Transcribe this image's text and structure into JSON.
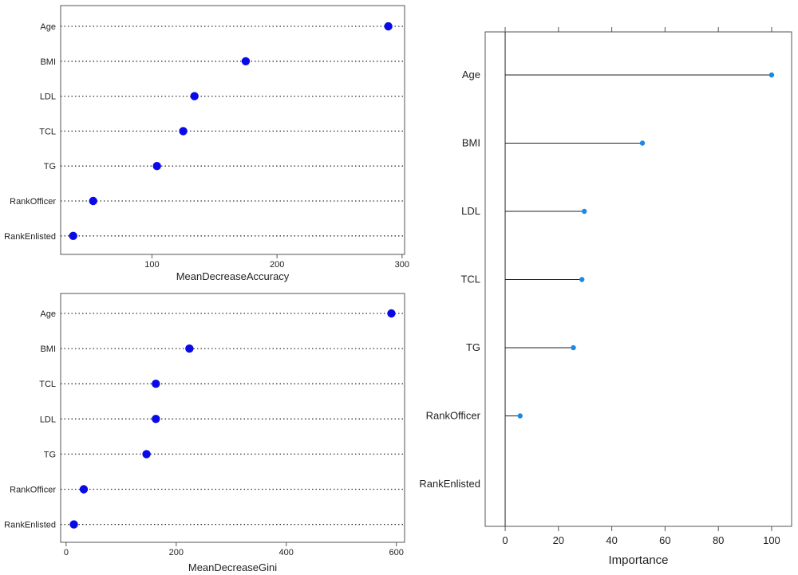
{
  "chart_data": [
    {
      "type": "scatter",
      "style": "dotchart",
      "xlabel": "MeanDecreaseAccuracy",
      "categories": [
        "Age",
        "BMI",
        "LDL",
        "TCL",
        "TG",
        "RankOfficer",
        "RankEnlisted"
      ],
      "values": [
        289,
        175,
        134,
        125,
        104,
        53,
        37
      ],
      "xlim": [
        27,
        302
      ],
      "xticks": [
        100,
        200,
        300
      ],
      "grid": "dotted",
      "point_color": "#0a0ae6"
    },
    {
      "type": "scatter",
      "style": "dotchart",
      "xlabel": "MeanDecreaseGini",
      "categories": [
        "Age",
        "BMI",
        "TCL",
        "LDL",
        "TG",
        "RankOfficer",
        "RankEnlisted"
      ],
      "values": [
        591,
        224,
        163,
        163,
        146,
        32,
        14
      ],
      "xlim": [
        -10,
        615
      ],
      "xticks": [
        0,
        200,
        400,
        600
      ],
      "grid": "dotted",
      "point_color": "#0a0ae6"
    },
    {
      "type": "bar",
      "style": "lollipop",
      "xlabel": "Importance",
      "categories": [
        "Age",
        "BMI",
        "LDL",
        "TCL",
        "TG",
        "RankOfficer",
        "RankEnlisted"
      ],
      "values": [
        100,
        51.5,
        29.7,
        28.8,
        25.6,
        5.6,
        0
      ],
      "xlim": [
        -7.5,
        107.5
      ],
      "xticks": [
        0,
        20,
        40,
        60,
        80,
        100
      ],
      "point_color": "#1e88e5"
    }
  ]
}
